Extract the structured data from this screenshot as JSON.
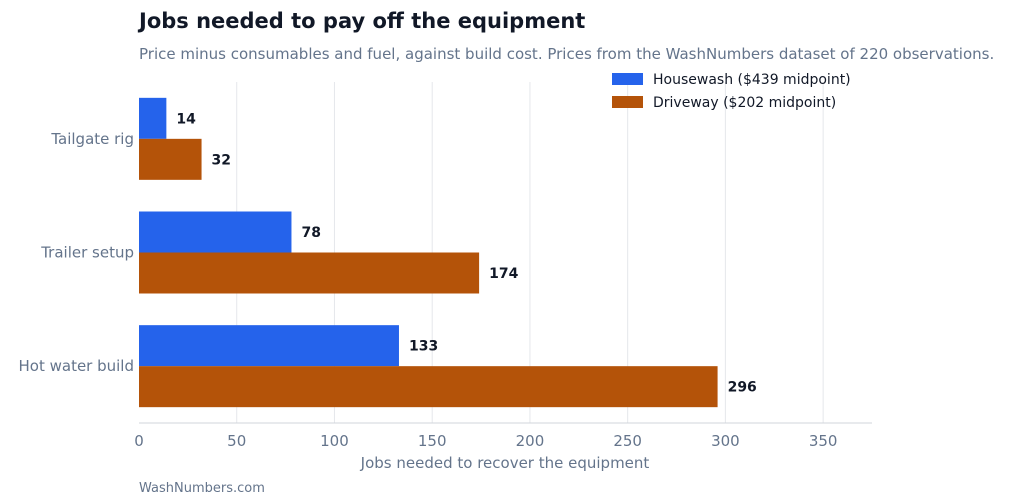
{
  "chart_data": {
    "type": "bar",
    "orientation": "horizontal",
    "title": "Jobs needed to pay off the equipment",
    "subtitle": "Price minus consumables and fuel, against build cost. Prices from the WashNumbers dataset of 220 observations.",
    "categories": [
      "Tailgate rig",
      "Trailer setup",
      "Hot water build"
    ],
    "series": [
      {
        "name": "Housewash ($439 midpoint)",
        "color": "#2563eb",
        "values": [
          14,
          78,
          133
        ]
      },
      {
        "name": "Driveway ($202 midpoint)",
        "color": "#b45309",
        "values": [
          32,
          174,
          296
        ]
      }
    ],
    "xlabel": "Jobs needed to recover the equipment",
    "ylabel": "",
    "xlim": [
      0,
      375
    ],
    "xticks": [
      0,
      50,
      100,
      150,
      200,
      250,
      300,
      350
    ],
    "grid": "vertical",
    "legend_position": "top-right",
    "source": "WashNumbers.com"
  }
}
